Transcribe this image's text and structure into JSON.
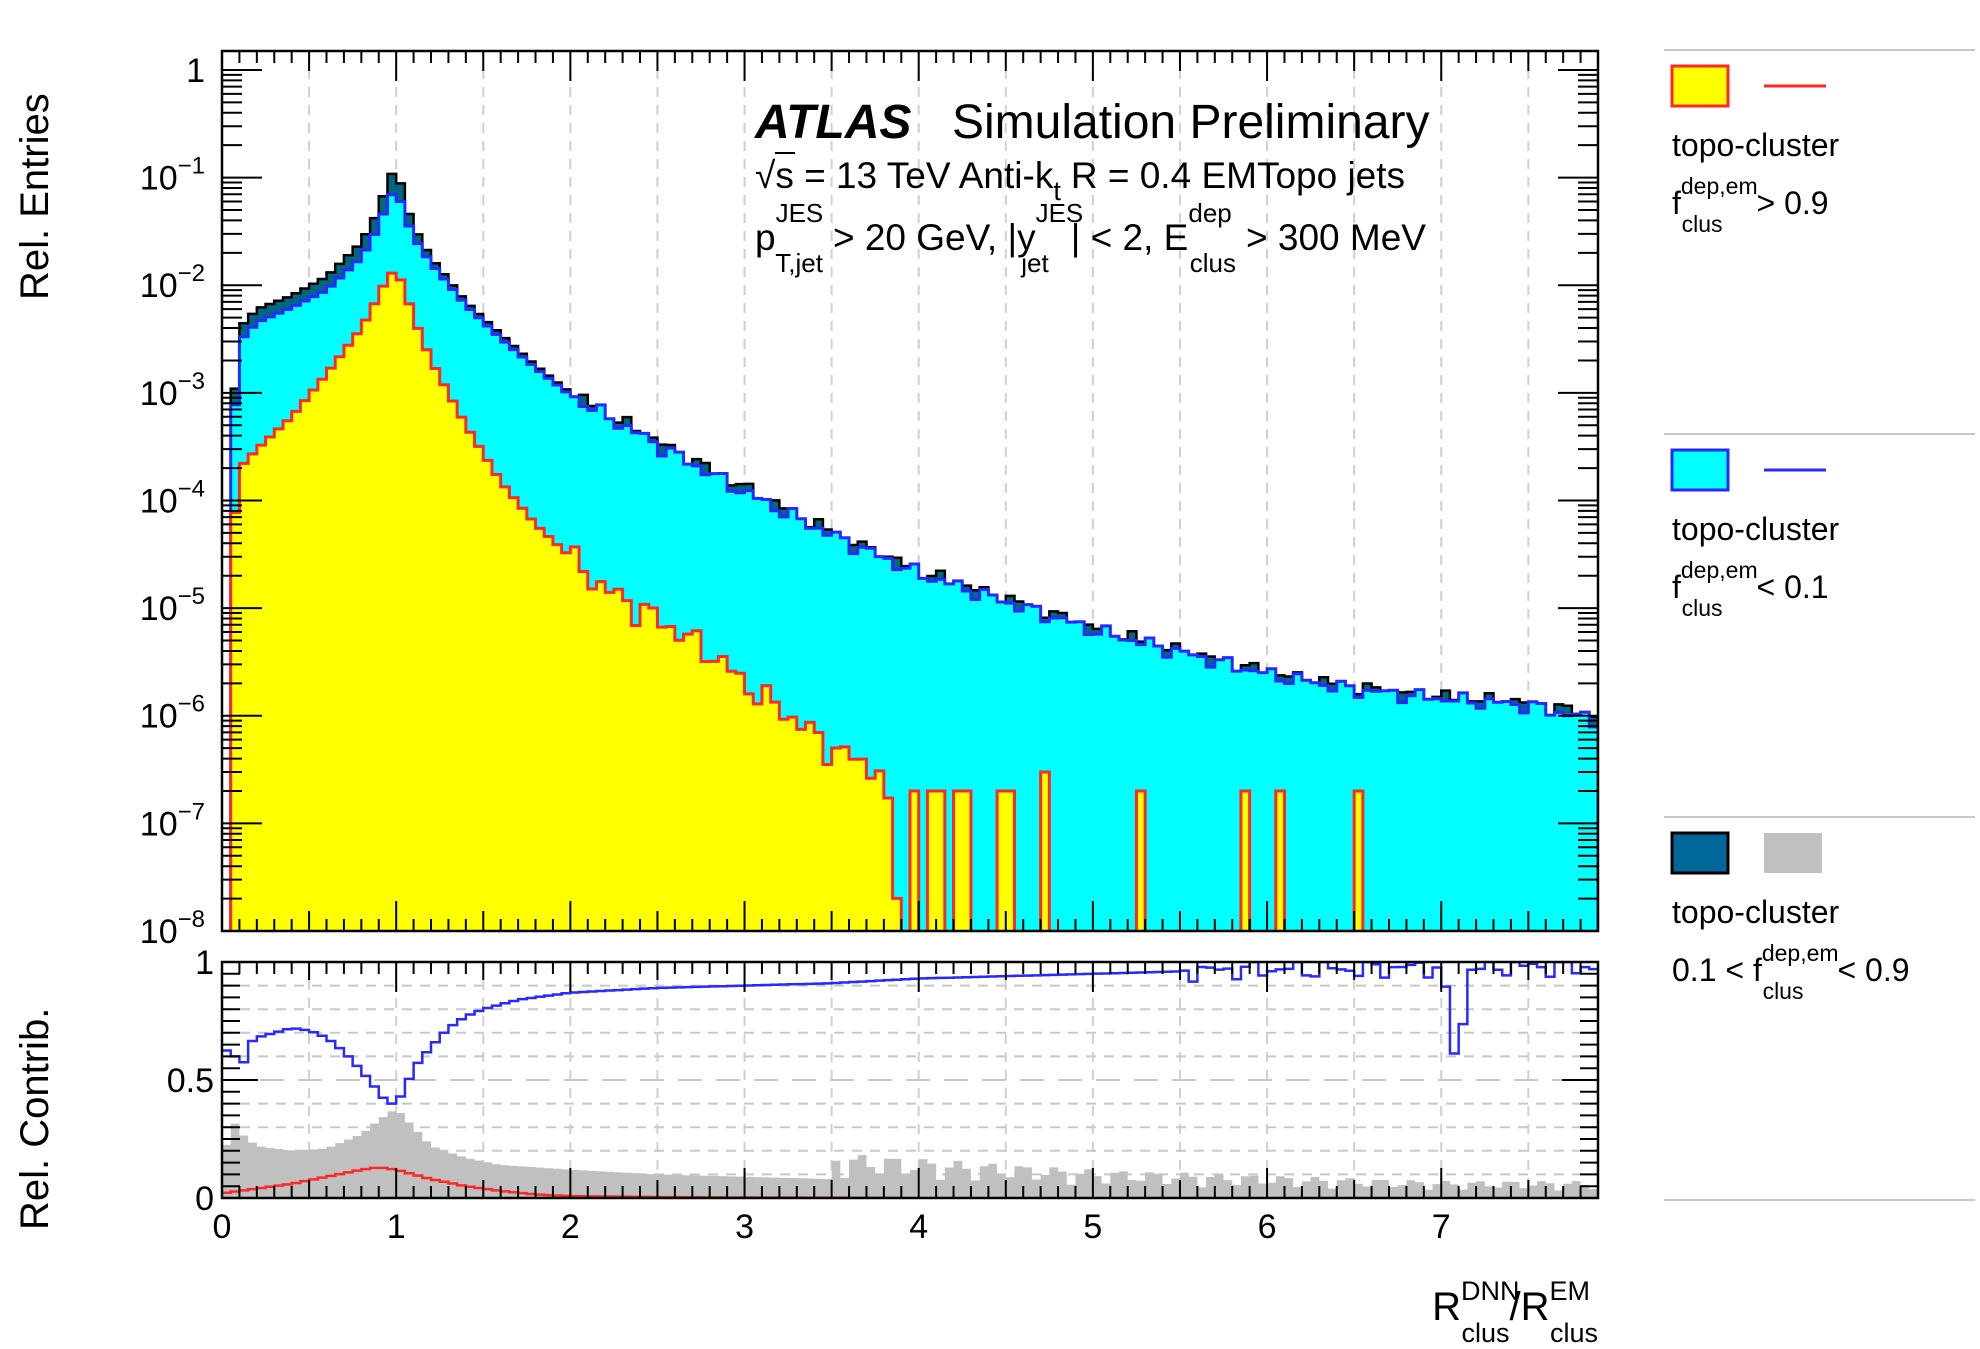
{
  "chart_data": [
    {
      "type": "area",
      "panel": "upper",
      "ylabel": "Rel. Entries",
      "yscale": "log",
      "xlim": [
        0,
        7.9
      ],
      "ylim": [
        1e-08,
        1.5
      ],
      "grid": "dashed vertical lines",
      "yticks": [
        {
          "base": "1",
          "exp": ""
        },
        {
          "base": "10",
          "exp": "−1"
        },
        {
          "base": "10",
          "exp": "−2"
        },
        {
          "base": "10",
          "exp": "−3"
        },
        {
          "base": "10",
          "exp": "−4"
        },
        {
          "base": "10",
          "exp": "−5"
        },
        {
          "base": "10",
          "exp": "−6"
        },
        {
          "base": "10",
          "exp": "−7"
        },
        {
          "base": "10",
          "exp": "−8"
        }
      ],
      "series": [
        {
          "key": "total",
          "fill": "#00677f",
          "x": [
            0.05,
            0.1,
            0.2,
            0.4,
            0.6,
            0.8,
            0.9,
            0.95,
            1.0,
            1.05,
            1.1,
            1.2,
            1.4,
            1.6,
            1.8,
            2.0,
            2.5,
            3.0,
            3.5,
            4.0,
            4.5,
            5.0,
            5.5,
            6.0,
            6.5,
            7.0,
            7.5,
            7.9
          ],
          "y": [
            0.0003,
            0.004,
            0.006,
            0.008,
            0.012,
            0.025,
            0.05,
            0.09,
            0.13,
            0.06,
            0.035,
            0.018,
            0.007,
            0.0035,
            0.0018,
            0.001,
            0.00035,
            0.00013,
            5e-05,
            2.2e-05,
            1.2e-05,
            6.5e-06,
            4e-06,
            2.5e-06,
            1.8e-06,
            1.5e-06,
            1.3e-06,
            1e-06
          ]
        },
        {
          "key": "em_lt_0.1",
          "fill": "#00ffff",
          "line": "#2828ff",
          "x": [
            0.05,
            0.1,
            0.2,
            0.4,
            0.6,
            0.8,
            0.9,
            0.95,
            1.0,
            1.05,
            1.1,
            1.2,
            1.4,
            1.6,
            1.8,
            2.0,
            2.5,
            3.0,
            3.5,
            4.0,
            4.5,
            5.0,
            5.5,
            6.0,
            6.5,
            7.0,
            7.5,
            7.9
          ],
          "y": [
            0.0002,
            0.003,
            0.0045,
            0.0062,
            0.009,
            0.018,
            0.035,
            0.06,
            0.08,
            0.045,
            0.028,
            0.016,
            0.0065,
            0.0032,
            0.0017,
            0.00095,
            0.00033,
            0.00012,
            4.8e-05,
            2.1e-05,
            1.15e-05,
            6.3e-06,
            3.9e-06,
            2.45e-06,
            1.75e-06,
            1.45e-06,
            1.25e-06,
            9e-07
          ]
        },
        {
          "key": "em_gt_0.9",
          "fill": "#ffff00",
          "line": "#ff2828",
          "x": [
            0.05,
            0.1,
            0.2,
            0.4,
            0.6,
            0.8,
            0.9,
            0.95,
            1.0,
            1.05,
            1.1,
            1.2,
            1.4,
            1.6,
            1.8,
            2.0,
            2.2,
            2.5,
            2.8,
            3.0,
            3.2,
            3.5,
            3.8,
            3.9
          ],
          "y": [
            3e-05,
            0.0002,
            0.0003,
            0.0006,
            0.0015,
            0.004,
            0.008,
            0.012,
            0.014,
            0.009,
            0.005,
            0.002,
            0.0005,
            0.00015,
            6e-05,
            3e-05,
            1.5e-05,
            8e-06,
            4e-06,
            2e-06,
            1.2e-06,
            5e-07,
            3e-07,
            1e-08
          ]
        }
      ],
      "spikes": [
        {
          "x": [
            3.95,
            4.0
          ],
          "y": 2e-07
        },
        {
          "x": [
            4.05,
            4.15
          ],
          "y": 2e-07
        },
        {
          "x": [
            4.2,
            4.3
          ],
          "y": 2e-07
        },
        {
          "x": [
            4.45,
            4.55
          ],
          "y": 2e-07
        },
        {
          "x": [
            4.7,
            4.75
          ],
          "y": 3e-07
        },
        {
          "x": [
            5.25,
            5.3
          ],
          "y": 2e-07
        },
        {
          "x": [
            5.85,
            5.9
          ],
          "y": 2e-07
        },
        {
          "x": [
            6.05,
            6.1
          ],
          "y": 2e-07
        },
        {
          "x": [
            6.5,
            6.55
          ],
          "y": 2e-07
        }
      ]
    },
    {
      "type": "line",
      "panel": "lower",
      "ylabel": "Rel. Contrib.",
      "xlabel": {
        "main1": "R",
        "sup1": "DNN",
        "sub1": "clus",
        "slash": "/",
        "main2": "R",
        "sup2": "EM",
        "sub2": "clus"
      },
      "xlim": [
        0,
        7.9
      ],
      "ylim": [
        0,
        1
      ],
      "xticks": [
        "0",
        "1",
        "2",
        "3",
        "4",
        "5",
        "6",
        "7"
      ],
      "yticks": [
        "0",
        "0.5",
        "1"
      ],
      "series": [
        {
          "key": "frac_em_lt_0.1",
          "color": "#2828ff",
          "x": [
            0.0,
            0.05,
            0.1,
            0.15,
            0.2,
            0.3,
            0.4,
            0.5,
            0.6,
            0.7,
            0.8,
            0.9,
            0.95,
            1.0,
            1.05,
            1.1,
            1.2,
            1.3,
            1.4,
            1.5,
            1.7,
            2.0,
            2.5,
            3.0,
            3.5,
            4.0,
            4.5,
            5.0,
            5.5,
            6.0,
            6.5,
            7.0,
            7.1,
            7.15,
            7.2,
            7.5,
            7.9
          ],
          "y": [
            0.55,
            0.7,
            0.5,
            0.65,
            0.68,
            0.7,
            0.72,
            0.71,
            0.68,
            0.62,
            0.54,
            0.45,
            0.4,
            0.4,
            0.46,
            0.55,
            0.64,
            0.72,
            0.77,
            0.8,
            0.84,
            0.87,
            0.89,
            0.9,
            0.91,
            0.93,
            0.94,
            0.95,
            0.96,
            0.97,
            0.97,
            0.98,
            0.5,
            0.98,
            0.98,
            0.98,
            0.98
          ]
        },
        {
          "key": "frac_em_gt_0.9",
          "color": "#ff2828",
          "x": [
            0.0,
            0.2,
            0.4,
            0.6,
            0.8,
            0.9,
            1.0,
            1.1,
            1.2,
            1.4,
            1.6,
            1.8,
            2.0,
            2.5,
            3.0,
            3.5,
            3.9
          ],
          "y": [
            0.02,
            0.04,
            0.06,
            0.09,
            0.12,
            0.13,
            0.12,
            0.1,
            0.08,
            0.05,
            0.03,
            0.015,
            0.008,
            0.004,
            0.002,
            0.001,
            0.0
          ]
        },
        {
          "key": "frac_mixed",
          "fill": "#c0c0c0",
          "x": [
            0.0,
            0.05,
            0.1,
            0.2,
            0.4,
            0.6,
            0.8,
            0.9,
            1.0,
            1.1,
            1.2,
            1.4,
            1.6,
            2.0,
            2.5,
            3.0,
            3.5,
            4.0,
            4.5,
            5.0,
            6.0,
            7.0,
            7.9
          ],
          "y": [
            0.1,
            0.35,
            0.28,
            0.22,
            0.2,
            0.21,
            0.27,
            0.33,
            0.38,
            0.3,
            0.22,
            0.17,
            0.14,
            0.12,
            0.1,
            0.09,
            0.08,
            0.07,
            0.06,
            0.05,
            0.04,
            0.03,
            0.03
          ]
        }
      ]
    }
  ],
  "annotation": {
    "atlas": "ATLAS",
    "simulation": "Simulation Preliminary",
    "line1_sqrt": "√",
    "line1_pre": "s = 13 TeV Anti-k",
    "line1_sub": "t",
    "line1_post": "R = 0.4 EMTopo jets",
    "line2_p": "p",
    "line2_p_sup": "JES",
    "line2_p_sub": "T,jet",
    "line2_mid1": "> 20 GeV, |y",
    "line2_y_sup": "JES",
    "line2_y_sub": "jet",
    "line2_mid2": "| < 2, E",
    "line2_e_sup": "dep",
    "line2_e_sub": "clus",
    "line2_end": "> 300 MeV"
  },
  "legend": [
    {
      "fill": "#ffff00",
      "border": "#ff2828",
      "line": "#ff2828",
      "label": "topo-cluster",
      "cond_pre": "",
      "f": "f",
      "sup": "dep,em",
      "sub": "clus",
      "cond_post": "> 0.9"
    },
    {
      "fill": "#00ffff",
      "border": "#2828ff",
      "line": "#2828ff",
      "label": "topo-cluster",
      "cond_pre": "",
      "f": "f",
      "sup": "dep,em",
      "sub": "clus",
      "cond_post": "< 0.1"
    },
    {
      "fill": "#00679a",
      "border": "#000000",
      "fill2": "#c0c0c0",
      "label": "topo-cluster",
      "cond_pre": "0.1 < ",
      "f": "f",
      "sup": "dep,em",
      "sub": "clus",
      "cond_post": "< 0.9"
    }
  ]
}
